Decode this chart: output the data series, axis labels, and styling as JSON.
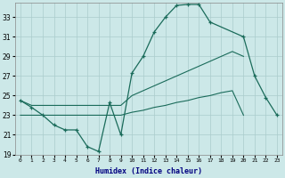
{
  "xlabel": "Humidex (Indice chaleur)",
  "bg_color": "#cce8e8",
  "grid_color": "#aacccc",
  "line_color": "#1a6b5a",
  "line1_x": [
    0,
    1,
    2,
    3,
    4,
    5,
    6,
    7,
    8,
    9,
    10,
    11,
    12,
    13,
    14,
    15,
    16,
    17,
    20,
    21,
    22,
    23
  ],
  "line1_y": [
    24.5,
    23.8,
    23.0,
    22.0,
    21.5,
    21.5,
    19.8,
    19.3,
    24.3,
    21.0,
    27.3,
    29.0,
    31.5,
    33.0,
    34.2,
    34.3,
    34.3,
    32.5,
    31.0,
    27.0,
    24.8,
    23.0
  ],
  "line2_x": [
    0,
    1,
    2,
    3,
    4,
    5,
    6,
    7,
    8,
    9,
    10,
    11,
    12,
    13,
    14,
    15,
    16,
    17,
    18,
    19,
    20
  ],
  "line2_y": [
    23.0,
    23.0,
    23.0,
    23.0,
    23.0,
    23.0,
    23.0,
    23.0,
    23.0,
    23.0,
    23.3,
    23.5,
    23.8,
    24.0,
    24.3,
    24.5,
    24.8,
    25.0,
    25.3,
    25.5,
    23.0
  ],
  "line3_x": [
    0,
    1,
    2,
    3,
    4,
    5,
    6,
    7,
    8,
    9,
    10,
    11,
    12,
    13,
    14,
    15,
    16,
    17,
    18,
    19,
    20
  ],
  "line3_y": [
    24.5,
    24.0,
    24.0,
    24.0,
    24.0,
    24.0,
    24.0,
    24.0,
    24.0,
    24.0,
    25.0,
    25.5,
    26.0,
    26.5,
    27.0,
    27.5,
    28.0,
    28.5,
    29.0,
    29.5,
    29.0
  ],
  "ylim": [
    19,
    34.5
  ],
  "yticks": [
    19,
    21,
    23,
    25,
    27,
    29,
    31,
    33
  ],
  "xlim": [
    -0.5,
    23.5
  ],
  "xticks": [
    0,
    1,
    2,
    3,
    4,
    5,
    6,
    7,
    8,
    9,
    10,
    11,
    12,
    13,
    14,
    15,
    16,
    17,
    18,
    19,
    20,
    21,
    22,
    23
  ],
  "xticklabels": [
    "0",
    "1",
    "2",
    "3",
    "4",
    "5",
    "6",
    "7",
    "8",
    "9",
    "10",
    "11",
    "12",
    "13",
    "14",
    "15",
    "16",
    "17",
    "18",
    "19",
    "20",
    "21",
    "22",
    "23"
  ]
}
